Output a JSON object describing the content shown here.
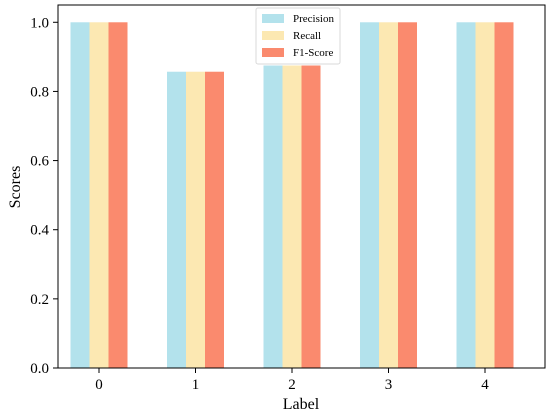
{
  "chart_data": {
    "type": "bar",
    "categories": [
      "0",
      "1",
      "2",
      "3",
      "4"
    ],
    "series": [
      {
        "name": "Precision",
        "values": [
          1.0,
          0.857,
          0.875,
          1.0,
          1.0
        ]
      },
      {
        "name": "Recall",
        "values": [
          1.0,
          0.857,
          0.875,
          1.0,
          1.0
        ]
      },
      {
        "name": "F1-Score",
        "values": [
          1.0,
          0.857,
          0.875,
          1.0,
          1.0
        ]
      }
    ],
    "title": "",
    "xlabel": "Label",
    "ylabel": "Scores",
    "ylim": [
      0,
      1.05
    ],
    "yticks": [
      "0.0",
      "0.2",
      "0.4",
      "0.6",
      "0.8",
      "1.0"
    ],
    "grid": false,
    "legend_position": "top-center",
    "colors": {
      "Precision": "#b3e2ec",
      "Recall": "#fce8b2",
      "F1-Score": "#fa8a6e"
    }
  }
}
